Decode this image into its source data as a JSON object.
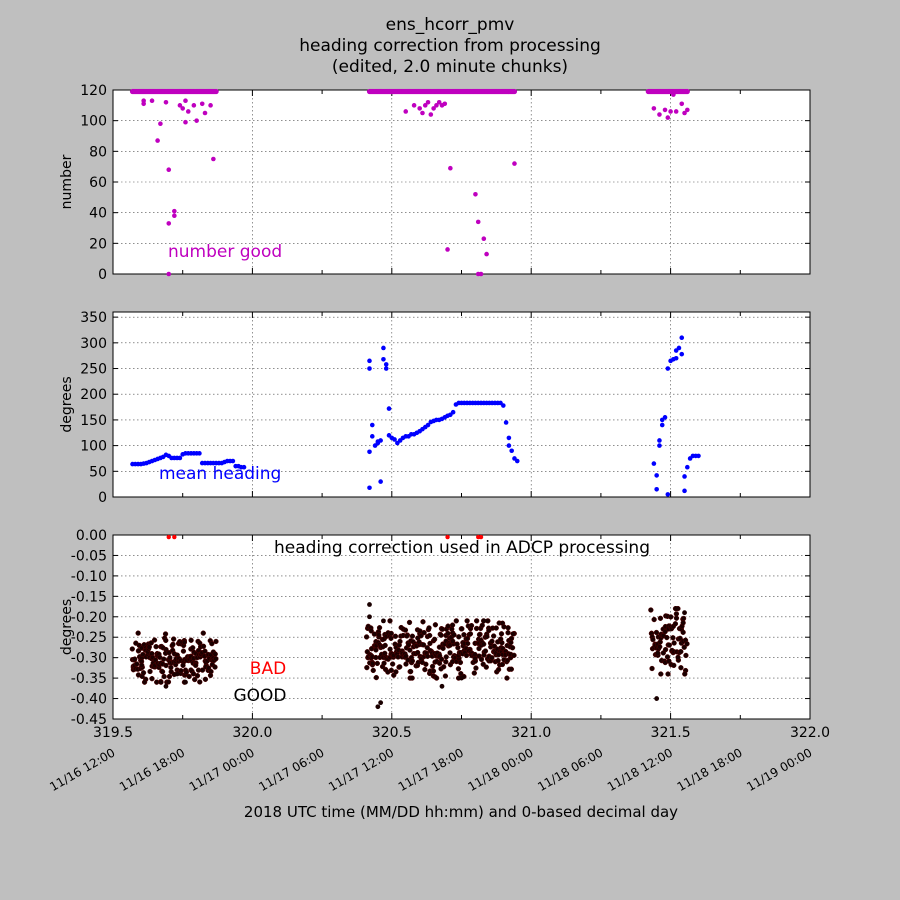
{
  "figure": {
    "title_lines": [
      "ens_hcorr_pmv",
      "heading correction from processing",
      "(edited, 2.0 minute chunks)"
    ],
    "xlabel": "2018 UTC time (MM/DD hh:mm) and 0-based decimal day"
  },
  "chart_data": [
    {
      "type": "scatter",
      "panel": "number",
      "ylabel": "number",
      "annotation": "number good",
      "color": "#bf00bf",
      "xlim": [
        319.5,
        322.0
      ],
      "ylim": [
        0,
        120
      ],
      "yticks": [
        "0",
        "20",
        "40",
        "60",
        "80",
        "100",
        "120"
      ],
      "grid": true,
      "series": [
        {
          "segments": [
            {
              "x_start": 319.57,
              "x_end": 319.87,
              "y": 119
            },
            {
              "x_start": 320.42,
              "x_end": 320.94,
              "y": 119
            },
            {
              "x_start": 321.42,
              "x_end": 321.56,
              "y": 119
            }
          ],
          "points": [
            [
              319.61,
              111
            ],
            [
              319.61,
              113
            ],
            [
              319.64,
              113
            ],
            [
              319.66,
              87
            ],
            [
              319.67,
              98
            ],
            [
              319.69,
              112
            ],
            [
              319.7,
              68
            ],
            [
              319.7,
              33
            ],
            [
              319.7,
              0
            ],
            [
              319.72,
              41
            ],
            [
              319.72,
              38
            ],
            [
              319.74,
              110
            ],
            [
              319.75,
              108
            ],
            [
              319.76,
              113
            ],
            [
              319.76,
              99
            ],
            [
              319.77,
              106
            ],
            [
              319.79,
              110
            ],
            [
              319.8,
              100
            ],
            [
              319.82,
              111
            ],
            [
              319.83,
              105
            ],
            [
              319.85,
              110
            ],
            [
              319.86,
              75
            ],
            [
              320.55,
              106
            ],
            [
              320.58,
              110
            ],
            [
              320.6,
              108
            ],
            [
              320.61,
              105
            ],
            [
              320.62,
              110
            ],
            [
              320.63,
              112
            ],
            [
              320.64,
              104
            ],
            [
              320.65,
              108
            ],
            [
              320.66,
              110
            ],
            [
              320.67,
              112
            ],
            [
              320.68,
              110
            ],
            [
              320.69,
              111
            ],
            [
              320.7,
              16
            ],
            [
              320.71,
              69
            ],
            [
              320.8,
              52
            ],
            [
              320.81,
              34
            ],
            [
              320.81,
              0
            ],
            [
              320.82,
              0
            ],
            [
              320.83,
              23
            ],
            [
              320.84,
              13
            ],
            [
              320.94,
              72
            ],
            [
              321.44,
              108
            ],
            [
              321.46,
              104
            ],
            [
              321.48,
              107
            ],
            [
              321.49,
              102
            ],
            [
              321.5,
              106
            ],
            [
              321.51,
              117
            ],
            [
              321.52,
              106
            ],
            [
              321.54,
              111
            ],
            [
              321.55,
              105
            ],
            [
              321.56,
              107
            ]
          ]
        }
      ]
    },
    {
      "type": "scatter",
      "panel": "mean heading",
      "ylabel": "degrees",
      "annotation": "mean heading",
      "color": "#0000ff",
      "xlim": [
        319.5,
        322.0
      ],
      "ylim": [
        0,
        360
      ],
      "yticks": [
        "0",
        "50",
        "100",
        "150",
        "200",
        "250",
        "300",
        "350"
      ],
      "grid": true,
      "series": [
        {
          "points": [
            [
              319.57,
              64
            ],
            [
              319.58,
              64
            ],
            [
              319.59,
              64
            ],
            [
              319.6,
              64
            ],
            [
              319.61,
              65
            ],
            [
              319.62,
              66
            ],
            [
              319.63,
              68
            ],
            [
              319.64,
              70
            ],
            [
              319.65,
              72
            ],
            [
              319.66,
              74
            ],
            [
              319.67,
              76
            ],
            [
              319.68,
              78
            ],
            [
              319.69,
              82
            ],
            [
              319.7,
              80
            ],
            [
              319.71,
              76
            ],
            [
              319.72,
              76
            ],
            [
              319.73,
              76
            ],
            [
              319.74,
              76
            ],
            [
              319.75,
              83
            ],
            [
              319.76,
              85
            ],
            [
              319.77,
              85
            ],
            [
              319.78,
              85
            ],
            [
              319.79,
              85
            ],
            [
              319.8,
              85
            ],
            [
              319.81,
              85
            ],
            [
              319.82,
              66
            ],
            [
              319.83,
              66
            ],
            [
              319.84,
              66
            ],
            [
              319.85,
              66
            ],
            [
              319.86,
              66
            ],
            [
              319.87,
              66
            ],
            [
              319.88,
              66
            ],
            [
              319.89,
              66
            ],
            [
              319.9,
              68
            ],
            [
              319.91,
              70
            ],
            [
              319.92,
              70
            ],
            [
              319.93,
              70
            ],
            [
              319.94,
              60
            ],
            [
              319.95,
              60
            ],
            [
              319.96,
              58
            ],
            [
              319.97,
              58
            ],
            [
              320.42,
              18
            ],
            [
              320.42,
              88
            ],
            [
              320.42,
              250
            ],
            [
              320.42,
              265
            ],
            [
              320.43,
              140
            ],
            [
              320.43,
              118
            ],
            [
              320.44,
              100
            ],
            [
              320.45,
              105
            ],
            [
              320.45,
              108
            ],
            [
              320.46,
              110
            ],
            [
              320.46,
              30
            ],
            [
              320.47,
              290
            ],
            [
              320.47,
              268
            ],
            [
              320.48,
              258
            ],
            [
              320.48,
              250
            ],
            [
              320.49,
              172
            ],
            [
              320.49,
              120
            ],
            [
              320.5,
              115
            ],
            [
              320.51,
              112
            ],
            [
              320.52,
              105
            ],
            [
              320.53,
              110
            ],
            [
              320.54,
              115
            ],
            [
              320.55,
              118
            ],
            [
              320.56,
              118
            ],
            [
              320.57,
              122
            ],
            [
              320.58,
              122
            ],
            [
              320.59,
              125
            ],
            [
              320.6,
              128
            ],
            [
              320.61,
              132
            ],
            [
              320.62,
              136
            ],
            [
              320.63,
              140
            ],
            [
              320.64,
              146
            ],
            [
              320.65,
              148
            ],
            [
              320.66,
              150
            ],
            [
              320.67,
              150
            ],
            [
              320.68,
              152
            ],
            [
              320.69,
              155
            ],
            [
              320.7,
              158
            ],
            [
              320.71,
              160
            ],
            [
              320.72,
              165
            ],
            [
              320.73,
              180
            ],
            [
              320.74,
              183
            ],
            [
              320.75,
              183
            ],
            [
              320.76,
              183
            ],
            [
              320.77,
              183
            ],
            [
              320.78,
              183
            ],
            [
              320.79,
              183
            ],
            [
              320.8,
              183
            ],
            [
              320.81,
              183
            ],
            [
              320.82,
              183
            ],
            [
              320.83,
              183
            ],
            [
              320.84,
              183
            ],
            [
              320.85,
              183
            ],
            [
              320.86,
              183
            ],
            [
              320.87,
              183
            ],
            [
              320.88,
              183
            ],
            [
              320.89,
              183
            ],
            [
              320.9,
              178
            ],
            [
              320.91,
              145
            ],
            [
              320.92,
              115
            ],
            [
              320.92,
              100
            ],
            [
              320.93,
              90
            ],
            [
              320.94,
              75
            ],
            [
              320.95,
              70
            ],
            [
              321.44,
              65
            ],
            [
              321.45,
              42
            ],
            [
              321.45,
              15
            ],
            [
              321.46,
              100
            ],
            [
              321.46,
              110
            ],
            [
              321.47,
              140
            ],
            [
              321.47,
              150
            ],
            [
              321.48,
              155
            ],
            [
              321.49,
              5
            ],
            [
              321.49,
              250
            ],
            [
              321.5,
              265
            ],
            [
              321.51,
              268
            ],
            [
              321.52,
              270
            ],
            [
              321.52,
              285
            ],
            [
              321.53,
              290
            ],
            [
              321.54,
              278
            ],
            [
              321.54,
              310
            ],
            [
              321.55,
              12
            ],
            [
              321.55,
              40
            ],
            [
              321.56,
              58
            ],
            [
              321.57,
              75
            ],
            [
              321.58,
              80
            ],
            [
              321.59,
              80
            ],
            [
              321.6,
              80
            ]
          ]
        }
      ]
    },
    {
      "type": "scatter",
      "panel": "heading correction",
      "ylabel": "degrees",
      "annotation": "heading correction used in ADCP processing",
      "legend": [
        {
          "label": "BAD",
          "color": "#ff0000"
        },
        {
          "label": "GOOD",
          "color": "#000000"
        }
      ],
      "xlim": [
        319.5,
        322.0
      ],
      "ylim": [
        -0.45,
        0.0
      ],
      "xticks": [
        "319.5",
        "320.0",
        "320.5",
        "321.0",
        "321.5",
        "322.0"
      ],
      "yticks": [
        "0.00",
        "-0.05",
        "-0.10",
        "-0.15",
        "-0.20",
        "-0.25",
        "-0.30",
        "-0.35",
        "-0.40",
        "-0.45"
      ],
      "date_ticks": [
        "11/16 12:00",
        "11/16 18:00",
        "11/17 00:00",
        "11/17 06:00",
        "11/17 12:00",
        "11/17 18:00",
        "11/18 00:00",
        "11/18 06:00",
        "11/18 12:00",
        "11/18 18:00",
        "11/19 00:00"
      ],
      "grid": true,
      "bad_points": [
        [
          319.7,
          -0.005
        ],
        [
          319.72,
          -0.005
        ],
        [
          320.7,
          -0.005
        ],
        [
          320.81,
          -0.005
        ],
        [
          320.82,
          -0.005
        ]
      ],
      "good_segments": [
        {
          "x_start": 319.57,
          "x_end": 319.87,
          "y_min": -0.36,
          "y_max": -0.24
        },
        {
          "x_start": 320.41,
          "x_end": 320.94,
          "y_min": -0.35,
          "y_max": -0.21
        },
        {
          "x_start": 321.43,
          "x_end": 321.56,
          "y_min": -0.34,
          "y_max": -0.18
        }
      ],
      "outlier_points": [
        [
          319.69,
          -0.37
        ],
        [
          319.73,
          -0.34
        ],
        [
          319.76,
          -0.36
        ],
        [
          320.42,
          -0.17
        ],
        [
          320.42,
          -0.2
        ],
        [
          320.45,
          -0.42
        ],
        [
          320.46,
          -0.41
        ],
        [
          320.47,
          -0.21
        ],
        [
          320.68,
          -0.37
        ],
        [
          320.75,
          -0.35
        ],
        [
          320.83,
          -0.21
        ],
        [
          321.45,
          -0.4
        ],
        [
          321.52,
          -0.18
        ],
        [
          321.55,
          -0.19
        ]
      ]
    }
  ]
}
